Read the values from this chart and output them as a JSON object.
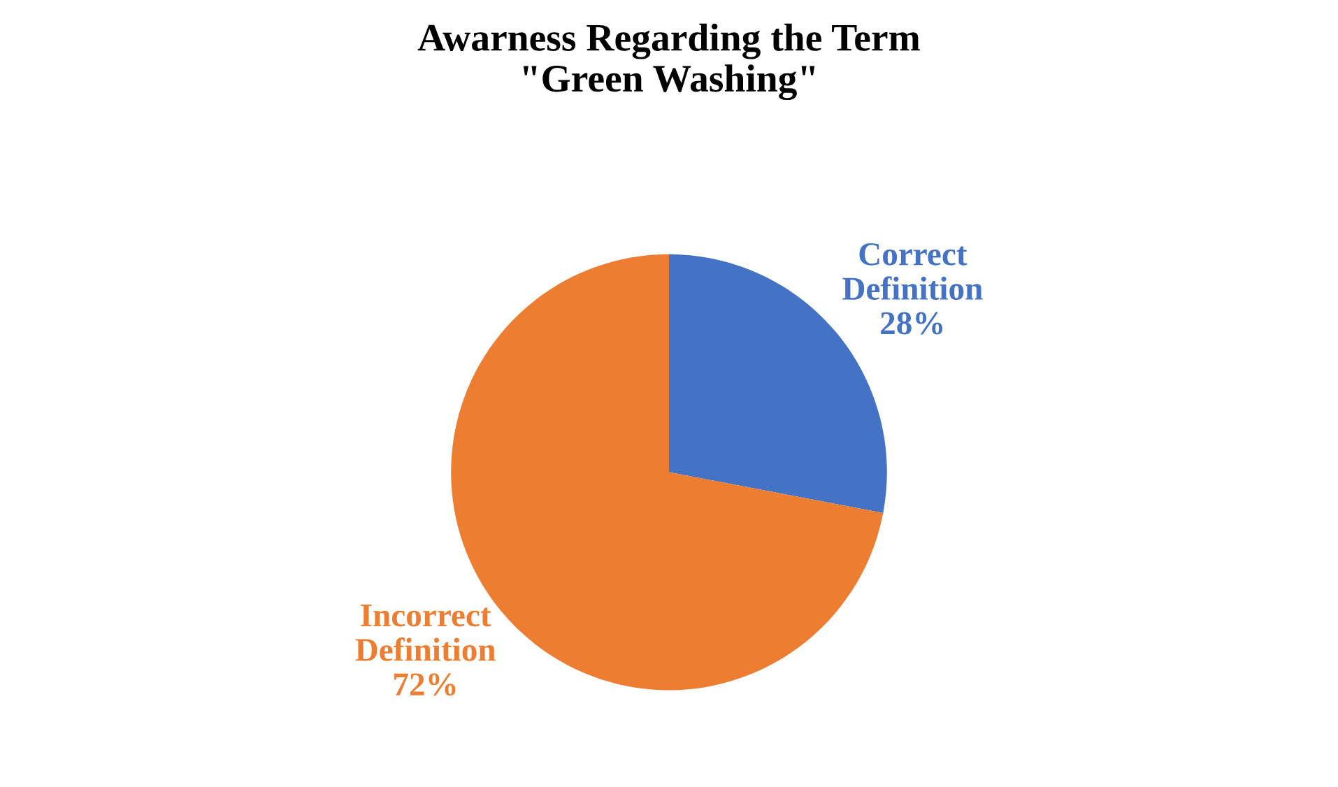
{
  "chart_data": {
    "type": "pie",
    "title": "Awarness Regarding the Term\n\"Green Washing\"",
    "categories": [
      "Correct Definition",
      "Incorrect Definition"
    ],
    "values": [
      28,
      72
    ],
    "colors": [
      "#4472c4",
      "#ed7d31"
    ],
    "value_labels": [
      "28%",
      "72%"
    ],
    "legend": false
  }
}
